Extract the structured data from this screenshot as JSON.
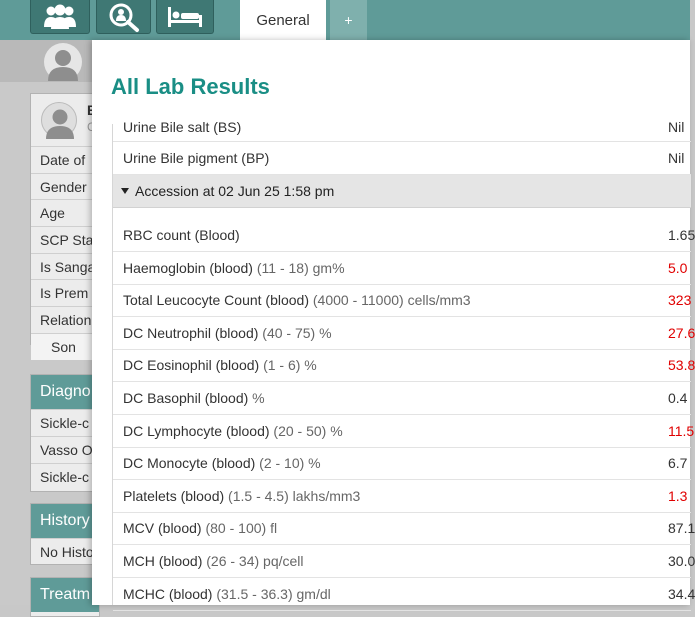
{
  "top_nav": {
    "buttons": [
      {
        "name": "patients-group-icon"
      },
      {
        "name": "search-patient-icon"
      },
      {
        "name": "bed-icon"
      }
    ],
    "tabs": [
      {
        "label": "General",
        "active": true
      },
      {
        "label": "+",
        "active": false
      }
    ]
  },
  "background": {
    "profile": {
      "initial": "E",
      "sub": "C",
      "rows": [
        "Date of",
        "Gender",
        "Age",
        "SCP Sta",
        "Is Sanga",
        "Is Prem",
        "Relation",
        "Son"
      ]
    },
    "diagnosis": {
      "title": "Diagno",
      "items": [
        "Sickle-c",
        "Vasso O",
        "Sickle-c"
      ]
    },
    "history": {
      "title": "History",
      "items": [
        "No Histo"
      ]
    },
    "treatment": {
      "title": "Treatm"
    }
  },
  "modal": {
    "title": "All Lab Results",
    "pre_rows": [
      {
        "name": "Urine Bile salt (BS)",
        "range": "",
        "value": "Nil",
        "abnormal": false
      },
      {
        "name": "Urine Bile pigment (BP)",
        "range": "",
        "value": "Nil",
        "abnormal": false
      }
    ],
    "accession": {
      "label": "Accession at 02 Jun 25 1:58 pm",
      "expanded": true
    },
    "results": [
      {
        "name": "RBC count (Blood)",
        "range": "",
        "value": "1.65",
        "abnormal": false
      },
      {
        "name": "Haemoglobin (blood)",
        "range": " (11 - 18) gm%",
        "value": "5.0",
        "abnormal": true
      },
      {
        "name": "Total Leucocyte Count (blood)",
        "range": " (4000 - 11000) cells/mm3",
        "value": "323",
        "abnormal": true
      },
      {
        "name": "DC Neutrophil (blood)",
        "range": " (40 - 75) %",
        "value": "27.6",
        "abnormal": true
      },
      {
        "name": "DC Eosinophil (blood)",
        "range": " (1 - 6) %",
        "value": "53.8",
        "abnormal": true
      },
      {
        "name": "DC Basophil (blood)",
        "range": " %",
        "value": "0.4",
        "abnormal": false
      },
      {
        "name": "DC Lymphocyte (blood)",
        "range": " (20 - 50) %",
        "value": "11.5",
        "abnormal": true
      },
      {
        "name": "DC Monocyte (blood)",
        "range": " (2 - 10) %",
        "value": "6.7",
        "abnormal": false
      },
      {
        "name": "Platelets (blood)",
        "range": " (1.5 - 4.5) lakhs/mm3",
        "value": "1.3",
        "abnormal": true
      },
      {
        "name": "MCV (blood)",
        "range": " (80 - 100) fl",
        "value": "87.1",
        "abnormal": false
      },
      {
        "name": "MCH (blood)",
        "range": " (26 - 34) pq/cell",
        "value": "30.0",
        "abnormal": false
      },
      {
        "name": "MCHC (blood)",
        "range": " (31.5 - 36.3) gm/dl",
        "value": "34.4",
        "abnormal": false
      }
    ]
  },
  "colors": {
    "accent": "#5f9b98",
    "title": "#1a8e85",
    "abnormal": "#e00000"
  }
}
